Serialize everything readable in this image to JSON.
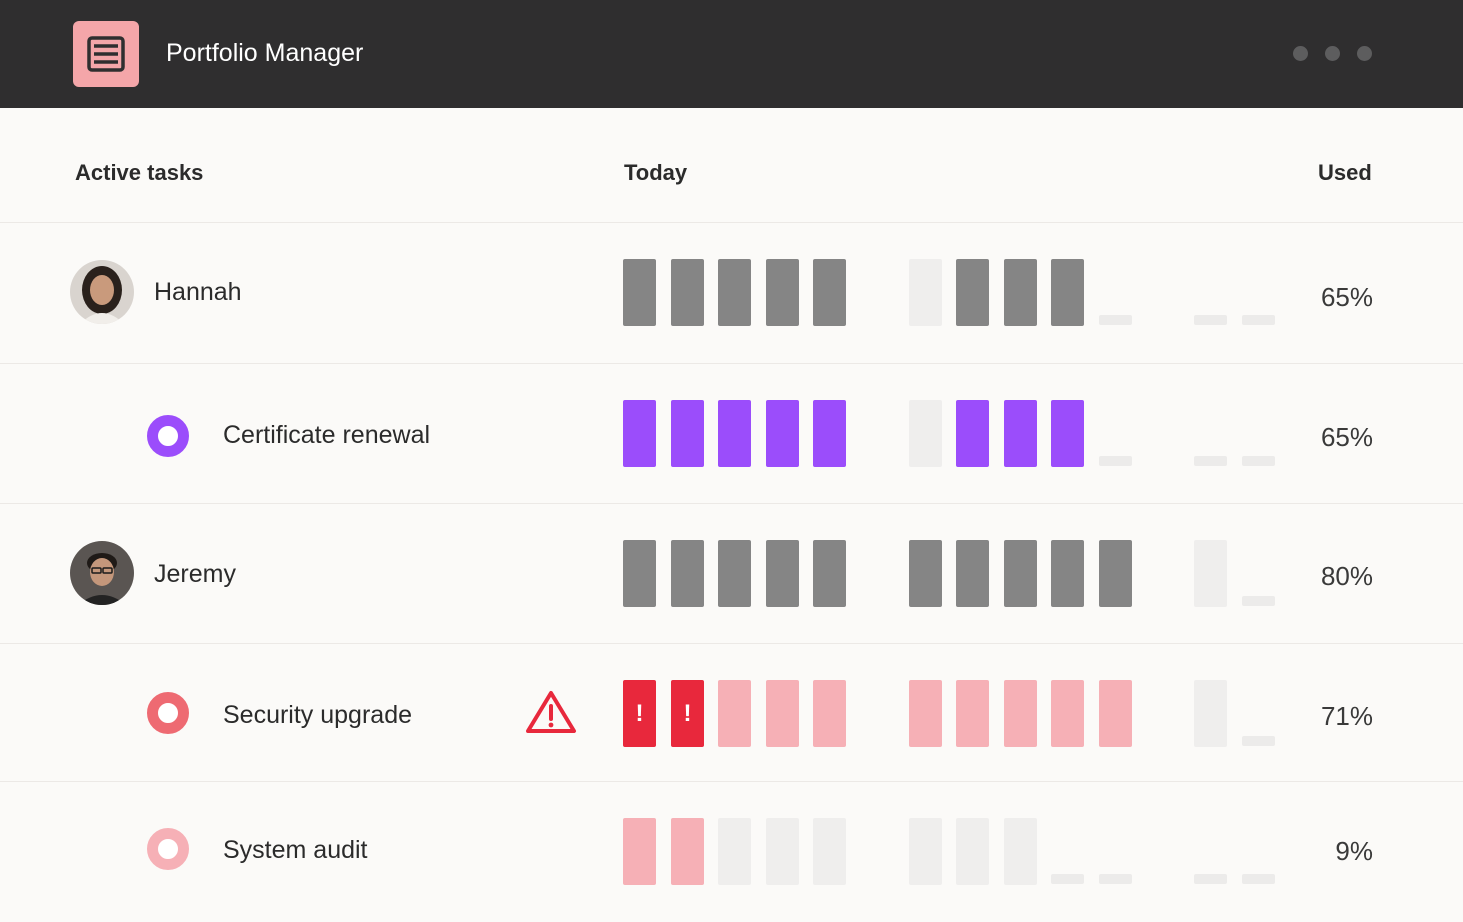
{
  "app": {
    "title": "Portfolio Manager",
    "logo_icon": "stacked-layers-icon",
    "accent": "#f4a6a9"
  },
  "columns": {
    "tasks": "Active tasks",
    "today": "Today",
    "used": "Used"
  },
  "rows": [
    {
      "kind": "person",
      "name": "Hannah",
      "used": "65%",
      "bar_color": "#858585",
      "slots": [
        "full",
        "full",
        "full",
        "full",
        "full",
        "gap",
        "ghost",
        "full",
        "full",
        "full",
        "dash",
        "none",
        "dash",
        "dash"
      ]
    },
    {
      "kind": "task",
      "name": "Certificate renewal",
      "used": "65%",
      "ring_color": "#9b4dfb",
      "bar_color": "#9b4dfb",
      "slots": [
        "full",
        "full",
        "full",
        "full",
        "full",
        "gap",
        "ghost",
        "full",
        "full",
        "full",
        "dash",
        "none",
        "dash",
        "dash"
      ]
    },
    {
      "kind": "person",
      "name": "Jeremy",
      "used": "80%",
      "bar_color": "#858585",
      "slots": [
        "full",
        "full",
        "full",
        "full",
        "full",
        "gap",
        "full",
        "full",
        "full",
        "full",
        "full",
        "none",
        "ghost",
        "dash"
      ]
    },
    {
      "kind": "task",
      "name": "Security upgrade",
      "used": "71%",
      "ring_color": "#ee6a72",
      "bar_color": "#f6b0b6",
      "alert_color": "#e8283c",
      "warning_icon": "warning-triangle-icon",
      "slots": [
        "alert",
        "alert",
        "full",
        "full",
        "full",
        "gap",
        "full",
        "full",
        "full",
        "full",
        "full",
        "none",
        "ghost",
        "dash"
      ]
    },
    {
      "kind": "task",
      "name": "System audit",
      "used": "9%",
      "ring_color": "#f6b0b6",
      "bar_color": "#f6b0b6",
      "slots": [
        "full",
        "full",
        "ghost",
        "ghost",
        "ghost",
        "gap",
        "ghost",
        "ghost",
        "ghost",
        "dash",
        "dash",
        "none",
        "dash",
        "dash"
      ]
    }
  ]
}
